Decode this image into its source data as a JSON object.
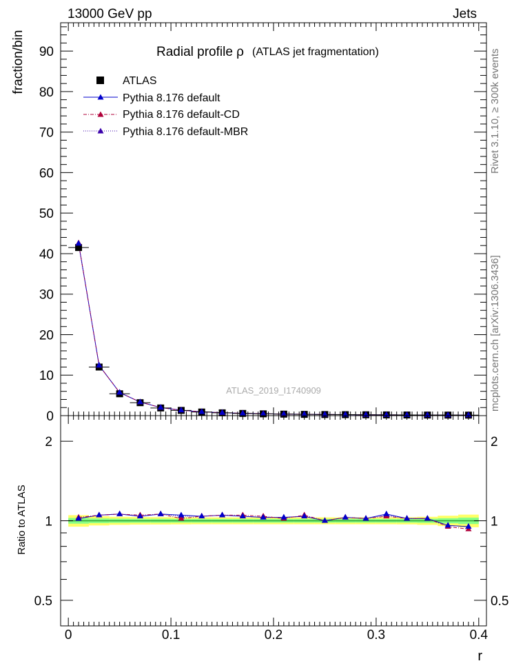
{
  "header": {
    "left": "13000 GeV pp",
    "right": "Jets"
  },
  "side_labels": {
    "rivet": "Rivet 3.1.10, ≥ 300k events",
    "mcplots": "mcplots.cern.ch [arXiv:1306.3436]"
  },
  "colors": {
    "atlas": "#000000",
    "default": "#0000cc",
    "default_cd": "#b0003a",
    "default_mbr": "#3a00aa",
    "band_outer": "#ffff66",
    "band_inner": "#88ff88",
    "ratio_line": "#2ea02e"
  },
  "chart_data": [
    {
      "type": "scatter",
      "title": "Radial profile  ρ",
      "subtitle": "(ATLAS jet fragmentation)",
      "watermark": "ATLAS_2019_I1740909",
      "ylabel": "fraction/bin",
      "xlim": [
        -0.0075,
        0.4075
      ],
      "ylim": [
        0,
        97
      ],
      "yticks": [
        0,
        10,
        20,
        30,
        40,
        50,
        60,
        70,
        80,
        90
      ],
      "legend_position": "top-left",
      "x": [
        0.01,
        0.03,
        0.05,
        0.07,
        0.09,
        0.11,
        0.13,
        0.15,
        0.17,
        0.19,
        0.21,
        0.23,
        0.25,
        0.27,
        0.29,
        0.31,
        0.33,
        0.35,
        0.37,
        0.39
      ],
      "series": [
        {
          "name": "ATLAS",
          "marker": "square",
          "values": [
            41.5,
            12.0,
            5.4,
            3.2,
            1.9,
            1.3,
            0.9,
            0.7,
            0.55,
            0.45,
            0.38,
            0.32,
            0.28,
            0.25,
            0.22,
            0.19,
            0.17,
            0.15,
            0.14,
            0.13
          ]
        },
        {
          "name": "Pythia 8.176 default",
          "marker": "triangle",
          "line": "solid",
          "values": [
            42.5,
            12.4,
            5.7,
            3.35,
            2.0,
            1.35,
            0.93,
            0.73,
            0.57,
            0.46,
            0.39,
            0.33,
            0.28,
            0.25,
            0.22,
            0.2,
            0.17,
            0.15,
            0.13,
            0.12
          ]
        },
        {
          "name": "Pythia 8.176 default-CD",
          "marker": "triangle",
          "line": "dashdot",
          "values": [
            42.6,
            12.4,
            5.7,
            3.35,
            2.0,
            1.33,
            0.93,
            0.73,
            0.58,
            0.46,
            0.39,
            0.34,
            0.28,
            0.26,
            0.22,
            0.2,
            0.17,
            0.15,
            0.13,
            0.12
          ]
        },
        {
          "name": "Pythia 8.176 default-MBR",
          "marker": "triangle",
          "line": "dotted",
          "values": [
            42.5,
            12.4,
            5.7,
            3.35,
            2.0,
            1.35,
            0.93,
            0.73,
            0.57,
            0.46,
            0.39,
            0.33,
            0.28,
            0.25,
            0.22,
            0.2,
            0.17,
            0.15,
            0.13,
            0.12
          ]
        }
      ]
    },
    {
      "type": "scatter",
      "ylabel": "Ratio to ATLAS",
      "xlabel": "r",
      "xlim": [
        -0.0075,
        0.4075
      ],
      "ylim": [
        0.4,
        2.5
      ],
      "log_y": true,
      "yticks": [
        0.5,
        1,
        2
      ],
      "xticks": [
        0,
        0.1,
        0.2,
        0.3,
        0.4
      ],
      "x": [
        0.01,
        0.03,
        0.05,
        0.07,
        0.09,
        0.11,
        0.13,
        0.15,
        0.17,
        0.19,
        0.21,
        0.23,
        0.25,
        0.27,
        0.29,
        0.31,
        0.33,
        0.35,
        0.37,
        0.39
      ],
      "band_inner": [
        0.025,
        0.02,
        0.018,
        0.017,
        0.017,
        0.016,
        0.016,
        0.016,
        0.016,
        0.016,
        0.016,
        0.016,
        0.016,
        0.016,
        0.016,
        0.016,
        0.016,
        0.018,
        0.022,
        0.028
      ],
      "band_outer": [
        0.05,
        0.04,
        0.035,
        0.033,
        0.032,
        0.031,
        0.03,
        0.03,
        0.03,
        0.03,
        0.03,
        0.03,
        0.03,
        0.03,
        0.03,
        0.03,
        0.031,
        0.035,
        0.045,
        0.055
      ],
      "series": [
        {
          "name": "Pythia 8.176 default",
          "marker": "triangle",
          "line": "solid",
          "values": [
            1.02,
            1.05,
            1.06,
            1.04,
            1.06,
            1.05,
            1.04,
            1.05,
            1.04,
            1.03,
            1.03,
            1.04,
            1.0,
            1.03,
            1.02,
            1.06,
            1.02,
            1.02,
            0.96,
            0.95
          ]
        },
        {
          "name": "Pythia 8.176 default-CD",
          "marker": "triangle",
          "line": "dashdot",
          "values": [
            1.03,
            1.05,
            1.06,
            1.05,
            1.06,
            1.02,
            1.04,
            1.05,
            1.05,
            1.04,
            1.02,
            1.05,
            1.0,
            1.03,
            1.02,
            1.04,
            1.02,
            1.02,
            0.95,
            0.93
          ]
        },
        {
          "name": "Pythia 8.176 default-MBR",
          "marker": "triangle",
          "line": "dotted",
          "values": [
            1.02,
            1.05,
            1.06,
            1.04,
            1.06,
            1.04,
            1.04,
            1.05,
            1.04,
            1.03,
            1.03,
            1.04,
            1.0,
            1.03,
            1.02,
            1.05,
            1.02,
            1.02,
            0.96,
            0.95
          ]
        }
      ]
    }
  ]
}
